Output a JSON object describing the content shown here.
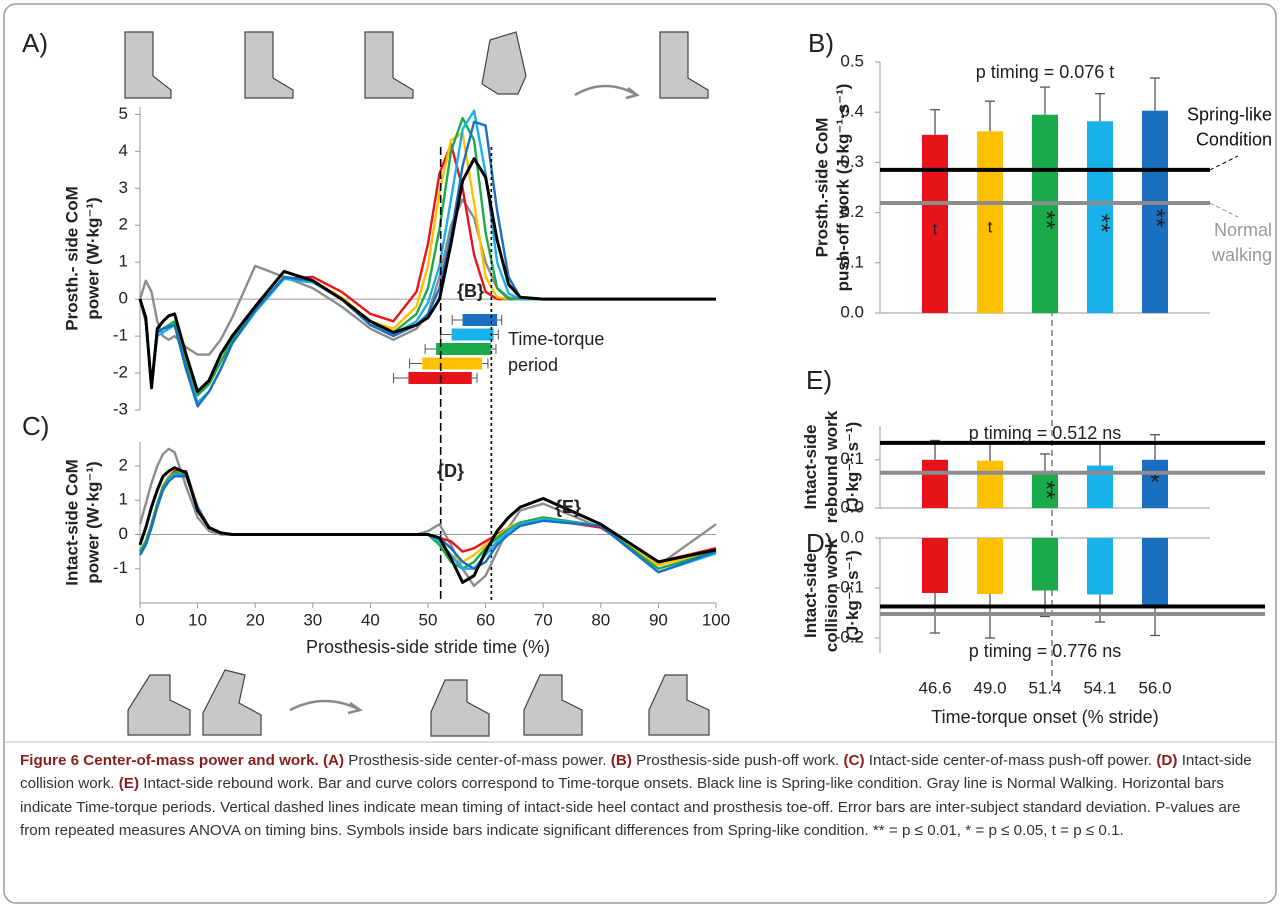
{
  "chart_data": [
    {
      "type": "line",
      "panel_label": "A)",
      "ylabel": [
        "Prosth.- side CoM",
        "power (W·kg⁻¹)"
      ],
      "xlim": [
        0,
        100
      ],
      "ylim": [
        -3,
        5.2
      ],
      "yticks": [
        -3,
        -2,
        -1,
        0,
        1,
        2,
        3,
        4,
        5
      ],
      "x": [
        0,
        1,
        2,
        3,
        4,
        5,
        6,
        8,
        10,
        12,
        14,
        16,
        20,
        25,
        30,
        35,
        40,
        44,
        48,
        50,
        52,
        54,
        56,
        58,
        60,
        62,
        64,
        66,
        70,
        80,
        90,
        100
      ],
      "series": [
        {
          "color": "#8c8c8c",
          "values": [
            0,
            0.5,
            0.2,
            -0.6,
            -1.0,
            -1.1,
            -1.0,
            -1.3,
            -1.5,
            -1.5,
            -1.1,
            -0.5,
            0.9,
            0.6,
            0.3,
            -0.2,
            -0.8,
            -1.1,
            -0.8,
            -0.4,
            0.6,
            2.0,
            2.7,
            2.2,
            1.0,
            0.3,
            0.05,
            0,
            0,
            0,
            0,
            0
          ]
        },
        {
          "color": "#e8141b",
          "values": [
            0,
            -0.6,
            -2.3,
            -0.9,
            -0.8,
            -0.75,
            -0.7,
            -1.8,
            -2.6,
            -2.3,
            -1.7,
            -1.1,
            -0.3,
            0.55,
            0.6,
            0.2,
            -0.4,
            -0.6,
            0.2,
            1.5,
            3.4,
            4.2,
            3.0,
            1.2,
            0.2,
            0,
            0,
            0,
            0,
            0,
            0,
            0
          ]
        },
        {
          "color": "#ffc000",
          "values": [
            0,
            -0.6,
            -2.4,
            -0.9,
            -0.8,
            -0.7,
            -0.65,
            -1.7,
            -2.5,
            -2.3,
            -1.7,
            -1.1,
            -0.3,
            0.6,
            0.5,
            0.05,
            -0.6,
            -0.8,
            -0.2,
            0.9,
            2.9,
            4.3,
            4.5,
            2.6,
            0.6,
            0.05,
            0,
            0,
            0,
            0,
            0,
            0
          ]
        },
        {
          "color": "#1aaa4a",
          "values": [
            0,
            -0.6,
            -2.3,
            -0.9,
            -0.8,
            -0.7,
            -0.6,
            -1.7,
            -2.6,
            -2.3,
            -1.7,
            -1.1,
            -0.3,
            0.6,
            0.5,
            0,
            -0.7,
            -0.9,
            -0.4,
            0.3,
            1.9,
            4.0,
            4.9,
            4.3,
            1.8,
            0.3,
            0,
            0,
            0,
            0,
            0,
            0
          ]
        },
        {
          "color": "#19b1ea",
          "values": [
            0,
            -0.6,
            -2.4,
            -1.0,
            -0.9,
            -0.8,
            -0.7,
            -1.9,
            -2.8,
            -2.5,
            -1.9,
            -1.2,
            -0.35,
            0.55,
            0.45,
            0,
            -0.7,
            -0.95,
            -0.6,
            -0.1,
            0.9,
            2.7,
            4.6,
            5.1,
            3.4,
            1.0,
            0.15,
            0,
            0,
            0,
            0,
            0
          ]
        },
        {
          "color": "#1a6fc0",
          "values": [
            0,
            -0.6,
            -2.4,
            -0.9,
            -0.8,
            -0.75,
            -0.7,
            -1.9,
            -2.9,
            -2.5,
            -1.9,
            -1.2,
            -0.3,
            0.6,
            0.5,
            0,
            -0.7,
            -1.0,
            -0.7,
            -0.4,
            0.3,
            1.7,
            3.6,
            4.8,
            4.7,
            2.4,
            0.6,
            0.05,
            0,
            0,
            0,
            0
          ]
        },
        {
          "color": "#000000",
          "values": [
            0,
            -0.5,
            -2.4,
            -0.8,
            -0.6,
            -0.45,
            -0.4,
            -1.5,
            -2.5,
            -2.2,
            -1.5,
            -1.0,
            -0.2,
            0.75,
            0.5,
            0,
            -0.6,
            -0.9,
            -0.7,
            -0.5,
            0,
            1.5,
            3.2,
            3.8,
            3.3,
            1.6,
            0.4,
            0.05,
            0,
            0,
            0,
            0
          ]
        }
      ],
      "periods": {
        "start": [
          46.6,
          49.0,
          51.4,
          54.1,
          56.0
        ],
        "start_sd": [
          2.6,
          2.2,
          1.9,
          1.9,
          1.8
        ],
        "end": [
          57.6,
          59.4,
          60.9,
          61.4,
          62.0
        ],
        "end_sd": [
          0.9,
          1.0,
          0.9,
          0.8,
          0.8
        ],
        "colors": [
          "#e8141b",
          "#ffc000",
          "#1aaa4a",
          "#19b1ea",
          "#1a6fc0"
        ]
      },
      "vlines": [
        52.2,
        61.0
      ],
      "annotations": [
        "{B}",
        "Time-torque",
        "period"
      ]
    },
    {
      "type": "line",
      "panel_label": "C)",
      "ylabel": [
        "Intact-side CoM",
        "power (W·kg⁻¹)"
      ],
      "xlabel": "Prosthesis-side stride time (%)",
      "xlim": [
        0,
        100
      ],
      "ylim": [
        -2,
        2.7
      ],
      "yticks": [
        -1,
        0,
        1,
        2
      ],
      "xticks": [
        0,
        10,
        20,
        30,
        40,
        50,
        60,
        70,
        80,
        90,
        100
      ],
      "x": [
        0,
        1,
        2,
        3,
        4,
        5,
        6,
        8,
        10,
        12,
        14,
        16,
        20,
        25,
        30,
        35,
        40,
        44,
        48,
        50,
        52,
        54,
        56,
        58,
        60,
        62,
        64,
        66,
        70,
        80,
        90,
        100
      ],
      "series": [
        {
          "color": "#8c8c8c",
          "values": [
            0.3,
            0.9,
            1.5,
            2.0,
            2.35,
            2.5,
            2.4,
            1.4,
            0.5,
            0.1,
            0,
            0,
            0,
            0,
            0,
            0,
            0,
            0,
            0,
            0.1,
            0.3,
            -0.3,
            -1.0,
            -1.5,
            -1.2,
            -0.5,
            0.2,
            0.7,
            0.9,
            0.2,
            -0.9,
            0.3
          ]
        },
        {
          "color": "#e8141b",
          "values": [
            -0.5,
            -0.2,
            0.3,
            0.9,
            1.4,
            1.7,
            1.85,
            1.85,
            0.8,
            0.2,
            0.05,
            0,
            0,
            0,
            0,
            0,
            0,
            0,
            0,
            0,
            -0.1,
            -0.2,
            -0.5,
            -0.4,
            -0.2,
            0,
            0.2,
            0.35,
            0.45,
            0.2,
            -0.8,
            -0.4
          ]
        },
        {
          "color": "#ffc000",
          "values": [
            -0.5,
            -0.2,
            0.3,
            0.9,
            1.4,
            1.7,
            1.8,
            1.8,
            0.8,
            0.2,
            0.05,
            0,
            0,
            0,
            0,
            0,
            0,
            0,
            0,
            0,
            -0.2,
            -0.6,
            -0.8,
            -0.6,
            -0.3,
            -0.05,
            0.2,
            0.35,
            0.5,
            0.25,
            -0.9,
            -0.45
          ]
        },
        {
          "color": "#1aaa4a",
          "values": [
            -0.5,
            -0.2,
            0.3,
            0.9,
            1.4,
            1.65,
            1.8,
            1.75,
            0.8,
            0.2,
            0.05,
            0,
            0,
            0,
            0,
            0,
            0,
            0,
            0,
            0,
            -0.3,
            -0.8,
            -1.0,
            -0.8,
            -0.4,
            -0.1,
            0.15,
            0.35,
            0.5,
            0.25,
            -1.0,
            -0.5
          ]
        },
        {
          "color": "#19b1ea",
          "values": [
            -0.6,
            -0.3,
            0.2,
            0.8,
            1.3,
            1.6,
            1.75,
            1.7,
            0.8,
            0.2,
            0.05,
            0,
            0,
            0,
            0,
            0,
            0,
            0,
            0,
            0,
            -0.2,
            -0.6,
            -1.0,
            -1.0,
            -0.6,
            -0.2,
            0.1,
            0.3,
            0.45,
            0.25,
            -1.1,
            -0.55
          ]
        },
        {
          "color": "#1a6fc0",
          "values": [
            -0.6,
            -0.3,
            0.2,
            0.8,
            1.3,
            1.55,
            1.7,
            1.7,
            0.8,
            0.2,
            0.05,
            0,
            0,
            0,
            0,
            0,
            0,
            0,
            0,
            0,
            -0.1,
            -0.4,
            -0.8,
            -1.0,
            -0.8,
            -0.3,
            0,
            0.25,
            0.4,
            0.25,
            -1.1,
            -0.5
          ]
        },
        {
          "color": "#000000",
          "values": [
            -0.3,
            0.2,
            0.8,
            1.3,
            1.7,
            1.85,
            1.95,
            1.8,
            0.7,
            0.2,
            0.05,
            0,
            0,
            0,
            0,
            0,
            0,
            0,
            0,
            0,
            -0.1,
            -0.7,
            -1.4,
            -1.2,
            -0.5,
            0.1,
            0.5,
            0.8,
            1.05,
            0.3,
            -0.8,
            -0.45
          ]
        }
      ],
      "annotations": [
        "{D}",
        "{E}"
      ]
    },
    {
      "type": "bar",
      "panel_label": "B)",
      "title": "p timing = 0.076 t",
      "ylabel": [
        "Prosth.-side CoM",
        "push-off work (J·kg⁻¹·s⁻¹)"
      ],
      "ylim": [
        0,
        0.5
      ],
      "yticks": [
        {
          "value": 0,
          "label": "0.0"
        },
        0.1,
        0.2,
        0.3,
        0.4,
        0.5
      ],
      "colors": [
        "#e8141b",
        "#ffc000",
        "#1aaa4a",
        "#19b1ea",
        "#1a6fc0"
      ],
      "values": [
        0.355,
        0.362,
        0.395,
        0.382,
        0.403
      ],
      "errors": [
        0.05,
        0.06,
        0.055,
        0.055,
        0.065
      ],
      "bar_labels": [
        "t",
        "t",
        "**",
        "**",
        "**"
      ],
      "reference_lines": [
        {
          "name": [
            "Spring-like",
            "Condition"
          ],
          "value": 0.285,
          "color": "#000000"
        },
        {
          "name": [
            "Normal",
            "walking"
          ],
          "value": 0.219,
          "color": "#8c8c8c"
        }
      ]
    },
    {
      "type": "bar",
      "panel_label": "E)",
      "title": "p timing = 0.512 ns",
      "ylabel": [
        "Intact-side",
        "rebound work",
        "(J·kg⁻¹·s⁻¹)"
      ],
      "ylim": [
        0,
        0.17
      ],
      "yticks": [
        {
          "value": 0,
          "label": "0.0"
        },
        0.1
      ],
      "colors": [
        "#e8141b",
        "#ffc000",
        "#1aaa4a",
        "#19b1ea",
        "#1a6fc0"
      ],
      "values": [
        0.1,
        0.098,
        0.075,
        0.088,
        0.1
      ],
      "errors": [
        0.04,
        0.035,
        0.037,
        0.045,
        0.052
      ],
      "bar_labels": [
        null,
        null,
        "**",
        null,
        "*"
      ],
      "reference_lines": [
        {
          "value": 0.135,
          "color": "#000000"
        },
        {
          "value": 0.073,
          "color": "#8c8c8c"
        }
      ]
    },
    {
      "type": "bar",
      "panel_label": "D)",
      "title": "p timing = 0.776 ns",
      "ylabel": [
        "Intact-side",
        "collision work",
        "(J·kg⁻¹·s⁻¹)"
      ],
      "xlabel": "Time-torque onset (% stride)",
      "categories": [
        "46.6",
        "49.0",
        "51.4",
        "54.1",
        "56.0"
      ],
      "ylim": [
        -0.23,
        0
      ],
      "yticks": [
        {
          "value": 0,
          "label": "0.0"
        },
        -0.1,
        -0.2
      ],
      "colors": [
        "#e8141b",
        "#ffc000",
        "#1aaa4a",
        "#19b1ea",
        "#1a6fc0"
      ],
      "values": [
        -0.11,
        -0.112,
        -0.105,
        -0.113,
        -0.135
      ],
      "errors": [
        0.08,
        0.088,
        0.052,
        0.055,
        0.06
      ],
      "reference_lines": [
        {
          "value": -0.137,
          "color": "#000000"
        },
        {
          "value": -0.152,
          "color": "#8c8c8c"
        }
      ]
    }
  ],
  "caption": [
    {
      "bold": "Figure 6 Center-of-mass power and work. (A)",
      "text": " Prosthesis-side center-of-mass power. "
    },
    {
      "bold": "(B)",
      "text": " Prosthesis-side push-off work. "
    },
    {
      "bold": "(C)",
      "text": " Intact-side center-of-mass push-off power. "
    },
    {
      "bold": "(D)",
      "text": " Intact-side collision work. "
    },
    {
      "bold": "(E)",
      "text": " Intact-side rebound work. Bar and curve colors correspond to Time-torque onsets. Black line is Spring-like condition. Gray line is Normal Walking. Horizontal bars indicate Time-torque periods. Vertical dashed lines indicate mean timing of intact-side heel contact and prosthesis toe-off. Error bars are inter-subject standard deviation. P-values are from repeated measures ANOVA on timing bins. Symbols inside bars indicate significant differences from Spring-like condition. ** = p ≤ 0.01, * = p ≤ 0.05, t = p ≤ 0.1."
    }
  ]
}
